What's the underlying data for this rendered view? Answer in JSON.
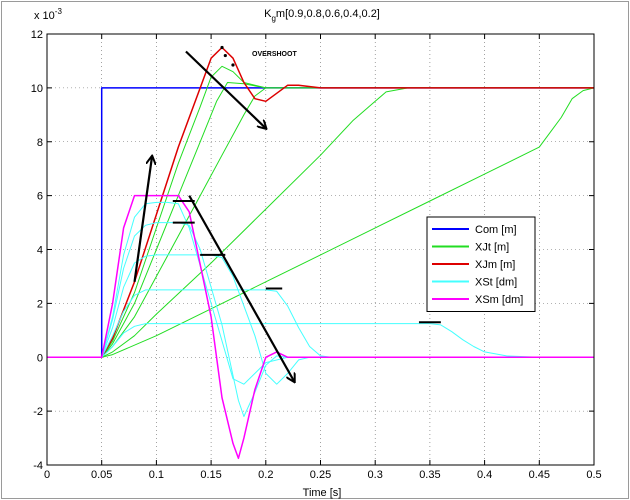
{
  "chart_data": {
    "type": "line",
    "title": "K_g m[0.9,0.8,0.6,0.4,0.2]",
    "title_main": "K",
    "title_sub": "g",
    "title_rest": "m[0.9,0.8,0.6,0.4,0.2]",
    "xlabel": "Time [s]",
    "ylabel": "",
    "y_exponent": "x 10",
    "y_exponent_power": "-3",
    "xlim": [
      0,
      0.5
    ],
    "ylim": [
      -4,
      12
    ],
    "grid": true,
    "xticks": [
      "0",
      "0.05",
      "0.1",
      "0.15",
      "0.2",
      "0.25",
      "0.3",
      "0.35",
      "0.4",
      "0.45",
      "0.5"
    ],
    "yticks": [
      "-4",
      "-2",
      "0",
      "2",
      "4",
      "6",
      "8",
      "10",
      "12"
    ],
    "xtick_values": [
      0,
      0.05,
      0.1,
      0.15,
      0.2,
      0.25,
      0.3,
      0.35,
      0.4,
      0.45,
      0.5
    ],
    "ytick_values": [
      -4,
      -2,
      0,
      2,
      4,
      6,
      8,
      10,
      12
    ],
    "annotation": "OVERSHOOT",
    "legend_position": "right",
    "legend": [
      {
        "label": "Com [m]",
        "color": "#0000ff"
      },
      {
        "label": "XJt [m]",
        "color": "#22dd22"
      },
      {
        "label": "XJm [m]",
        "color": "#dd0000"
      },
      {
        "label": "XSt [dm]",
        "color": "#44ffff"
      },
      {
        "label": "XSm [dm]",
        "color": "#ff00ff"
      }
    ],
    "series": [
      {
        "name": "Com [m]",
        "color": "#0000ff",
        "width": 1.5,
        "points": [
          [
            0,
            0
          ],
          [
            0.05,
            0
          ],
          [
            0.05,
            10
          ],
          [
            0.5,
            10
          ]
        ]
      },
      {
        "color": "#22dd22",
        "width": 1,
        "points": [
          [
            0,
            0
          ],
          [
            0.05,
            0
          ],
          [
            0.06,
            0.6
          ],
          [
            0.08,
            2.4
          ],
          [
            0.1,
            4.8
          ],
          [
            0.12,
            7.2
          ],
          [
            0.14,
            9.3
          ],
          [
            0.15,
            10.4
          ],
          [
            0.16,
            10.8
          ],
          [
            0.17,
            10.6
          ],
          [
            0.18,
            10.2
          ],
          [
            0.2,
            10.0
          ],
          [
            0.5,
            10.0
          ]
        ]
      },
      {
        "color": "#22dd22",
        "width": 1,
        "points": [
          [
            0,
            0
          ],
          [
            0.05,
            0
          ],
          [
            0.06,
            0.5
          ],
          [
            0.08,
            2.0
          ],
          [
            0.1,
            4.0
          ],
          [
            0.12,
            6.0
          ],
          [
            0.14,
            8.0
          ],
          [
            0.155,
            9.5
          ],
          [
            0.165,
            10.2
          ],
          [
            0.18,
            10.15
          ],
          [
            0.2,
            10.0
          ],
          [
            0.5,
            10.0
          ]
        ]
      },
      {
        "color": "#22dd22",
        "width": 1,
        "points": [
          [
            0,
            0
          ],
          [
            0.05,
            0
          ],
          [
            0.06,
            0.4
          ],
          [
            0.08,
            1.5
          ],
          [
            0.1,
            3.0
          ],
          [
            0.12,
            4.5
          ],
          [
            0.14,
            6.0
          ],
          [
            0.16,
            7.5
          ],
          [
            0.18,
            9.0
          ],
          [
            0.19,
            9.7
          ],
          [
            0.2,
            10.0
          ],
          [
            0.5,
            10.0
          ]
        ]
      },
      {
        "color": "#22dd22",
        "width": 1,
        "points": [
          [
            0,
            0
          ],
          [
            0.05,
            0
          ],
          [
            0.06,
            0.2
          ],
          [
            0.08,
            0.8
          ],
          [
            0.1,
            1.6
          ],
          [
            0.15,
            3.5
          ],
          [
            0.2,
            5.5
          ],
          [
            0.25,
            7.5
          ],
          [
            0.28,
            8.8
          ],
          [
            0.3,
            9.5
          ],
          [
            0.31,
            9.85
          ],
          [
            0.33,
            10.0
          ],
          [
            0.5,
            10.0
          ]
        ]
      },
      {
        "color": "#22dd22",
        "width": 1,
        "points": [
          [
            0,
            0
          ],
          [
            0.05,
            0
          ],
          [
            0.06,
            0.1
          ],
          [
            0.1,
            0.8
          ],
          [
            0.15,
            1.8
          ],
          [
            0.2,
            2.8
          ],
          [
            0.25,
            3.8
          ],
          [
            0.3,
            4.8
          ],
          [
            0.35,
            5.8
          ],
          [
            0.4,
            6.8
          ],
          [
            0.45,
            7.8
          ],
          [
            0.47,
            8.9
          ],
          [
            0.48,
            9.6
          ],
          [
            0.49,
            9.9
          ],
          [
            0.5,
            10.0
          ]
        ]
      },
      {
        "name": "XJm [m]",
        "color": "#dd0000",
        "width": 1.5,
        "points": [
          [
            0,
            0
          ],
          [
            0.05,
            0
          ],
          [
            0.06,
            0.7
          ],
          [
            0.08,
            2.8
          ],
          [
            0.1,
            5.3
          ],
          [
            0.12,
            7.8
          ],
          [
            0.14,
            10.0
          ],
          [
            0.15,
            11.1
          ],
          [
            0.16,
            11.5
          ],
          [
            0.17,
            11.1
          ],
          [
            0.18,
            10.2
          ],
          [
            0.19,
            9.6
          ],
          [
            0.2,
            9.5
          ],
          [
            0.21,
            9.8
          ],
          [
            0.22,
            10.1
          ],
          [
            0.23,
            10.1
          ],
          [
            0.25,
            10.0
          ],
          [
            0.5,
            10.0
          ]
        ]
      },
      {
        "color": "#44ffff",
        "width": 1,
        "points": [
          [
            0,
            0
          ],
          [
            0.05,
            0
          ],
          [
            0.06,
            1.5
          ],
          [
            0.07,
            3.8
          ],
          [
            0.08,
            5.2
          ],
          [
            0.09,
            5.7
          ],
          [
            0.1,
            5.75
          ],
          [
            0.11,
            5.75
          ],
          [
            0.12,
            5.7
          ],
          [
            0.13,
            4.8
          ],
          [
            0.15,
            2.0
          ],
          [
            0.17,
            -0.8
          ],
          [
            0.18,
            -1.0
          ],
          [
            0.19,
            -0.6
          ],
          [
            0.2,
            -0.2
          ],
          [
            0.22,
            0
          ],
          [
            0.5,
            0
          ]
        ]
      },
      {
        "color": "#44ffff",
        "width": 1,
        "points": [
          [
            0,
            0
          ],
          [
            0.05,
            0
          ],
          [
            0.06,
            1.4
          ],
          [
            0.07,
            3.3
          ],
          [
            0.08,
            4.5
          ],
          [
            0.09,
            4.9
          ],
          [
            0.1,
            5.0
          ],
          [
            0.12,
            5.0
          ],
          [
            0.13,
            4.9
          ],
          [
            0.14,
            4.0
          ],
          [
            0.16,
            1.2
          ],
          [
            0.175,
            -1.6
          ],
          [
            0.18,
            -2.2
          ],
          [
            0.19,
            -1.3
          ],
          [
            0.2,
            -0.3
          ],
          [
            0.21,
            0.05
          ],
          [
            0.22,
            0
          ],
          [
            0.5,
            0
          ]
        ]
      },
      {
        "color": "#44ffff",
        "width": 1,
        "points": [
          [
            0,
            0
          ],
          [
            0.05,
            0
          ],
          [
            0.06,
            1.1
          ],
          [
            0.07,
            2.6
          ],
          [
            0.08,
            3.5
          ],
          [
            0.09,
            3.75
          ],
          [
            0.1,
            3.8
          ],
          [
            0.15,
            3.8
          ],
          [
            0.16,
            3.7
          ],
          [
            0.17,
            3.0
          ],
          [
            0.19,
            0.8
          ],
          [
            0.2,
            -0.6
          ],
          [
            0.21,
            -1.0
          ],
          [
            0.22,
            -0.6
          ],
          [
            0.23,
            -0.1
          ],
          [
            0.24,
            0
          ],
          [
            0.5,
            0
          ]
        ]
      },
      {
        "color": "#44ffff",
        "width": 1,
        "points": [
          [
            0,
            0
          ],
          [
            0.05,
            0
          ],
          [
            0.06,
            0.8
          ],
          [
            0.07,
            1.7
          ],
          [
            0.08,
            2.3
          ],
          [
            0.09,
            2.5
          ],
          [
            0.2,
            2.5
          ],
          [
            0.21,
            2.45
          ],
          [
            0.22,
            1.9
          ],
          [
            0.23,
            1.1
          ],
          [
            0.24,
            0.4
          ],
          [
            0.25,
            0.05
          ],
          [
            0.26,
            0
          ],
          [
            0.5,
            0
          ]
        ]
      },
      {
        "color": "#44ffff",
        "width": 1,
        "points": [
          [
            0,
            0
          ],
          [
            0.05,
            0
          ],
          [
            0.06,
            0.4
          ],
          [
            0.07,
            0.9
          ],
          [
            0.08,
            1.15
          ],
          [
            0.09,
            1.25
          ],
          [
            0.35,
            1.25
          ],
          [
            0.36,
            1.2
          ],
          [
            0.37,
            0.95
          ],
          [
            0.38,
            0.65
          ],
          [
            0.39,
            0.4
          ],
          [
            0.4,
            0.2
          ],
          [
            0.42,
            0.05
          ],
          [
            0.45,
            0
          ],
          [
            0.5,
            0
          ]
        ]
      },
      {
        "name": "XSm [dm]",
        "color": "#ff00ff",
        "width": 1.5,
        "points": [
          [
            0,
            0
          ],
          [
            0.05,
            0
          ],
          [
            0.06,
            2.0
          ],
          [
            0.07,
            4.8
          ],
          [
            0.08,
            6.0
          ],
          [
            0.09,
            6.0
          ],
          [
            0.12,
            6.0
          ],
          [
            0.13,
            5.4
          ],
          [
            0.15,
            1.5
          ],
          [
            0.16,
            -1.5
          ],
          [
            0.17,
            -3.2
          ],
          [
            0.175,
            -3.75
          ],
          [
            0.18,
            -3.0
          ],
          [
            0.19,
            -1.2
          ],
          [
            0.2,
            0.0
          ],
          [
            0.21,
            0.2
          ],
          [
            0.22,
            0.0
          ],
          [
            0.5,
            0.0
          ]
        ]
      }
    ],
    "overshoot_dots": [
      [
        0.16,
        11.5
      ],
      [
        0.163,
        11.2
      ],
      [
        0.17,
        10.85
      ]
    ],
    "level_marks": [
      {
        "x1": 0.115,
        "x2": 0.135,
        "y": 5.8
      },
      {
        "x1": 0.115,
        "x2": 0.135,
        "y": 5.0
      },
      {
        "x1": 0.14,
        "x2": 0.163,
        "y": 3.8
      },
      {
        "x1": 0.2,
        "x2": 0.215,
        "y": 2.55
      },
      {
        "x1": 0.34,
        "x2": 0.36,
        "y": 1.3
      }
    ],
    "arrows": [
      {
        "from": [
          0.127,
          11.35
        ],
        "to": [
          0.2,
          8.5
        ]
      },
      {
        "from": [
          0.08,
          2.8
        ],
        "to": [
          0.096,
          7.45
        ]
      },
      {
        "from": [
          0.13,
          6.0
        ],
        "to": [
          0.226,
          -0.9
        ]
      }
    ]
  }
}
